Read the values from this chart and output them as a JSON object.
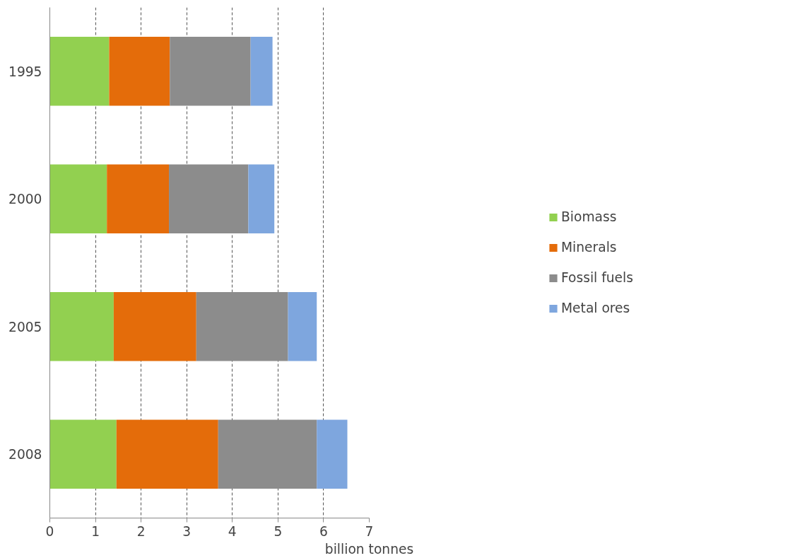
{
  "chart_data": {
    "type": "bar",
    "orientation": "horizontal",
    "stacked": true,
    "categories": [
      "1995",
      "2000",
      "2005",
      "2008"
    ],
    "series": [
      {
        "name": "Biomass",
        "color": "#92d050",
        "values": [
          1.3,
          1.25,
          1.4,
          1.46
        ]
      },
      {
        "name": "Minerals",
        "color": "#e46c0a",
        "values": [
          1.33,
          1.36,
          1.81,
          2.23
        ]
      },
      {
        "name": "Fossil fuels",
        "color": "#8c8c8c",
        "values": [
          1.77,
          1.74,
          2.01,
          2.16
        ]
      },
      {
        "name": "Metal ores",
        "color": "#7ea6de",
        "values": [
          0.48,
          0.57,
          0.63,
          0.67
        ]
      }
    ],
    "xlim": [
      0,
      7
    ],
    "xticks": [
      0,
      1,
      2,
      3,
      4,
      5,
      6,
      7
    ],
    "xlabel": "billion tonnes",
    "grid": "x",
    "legend": "right"
  }
}
